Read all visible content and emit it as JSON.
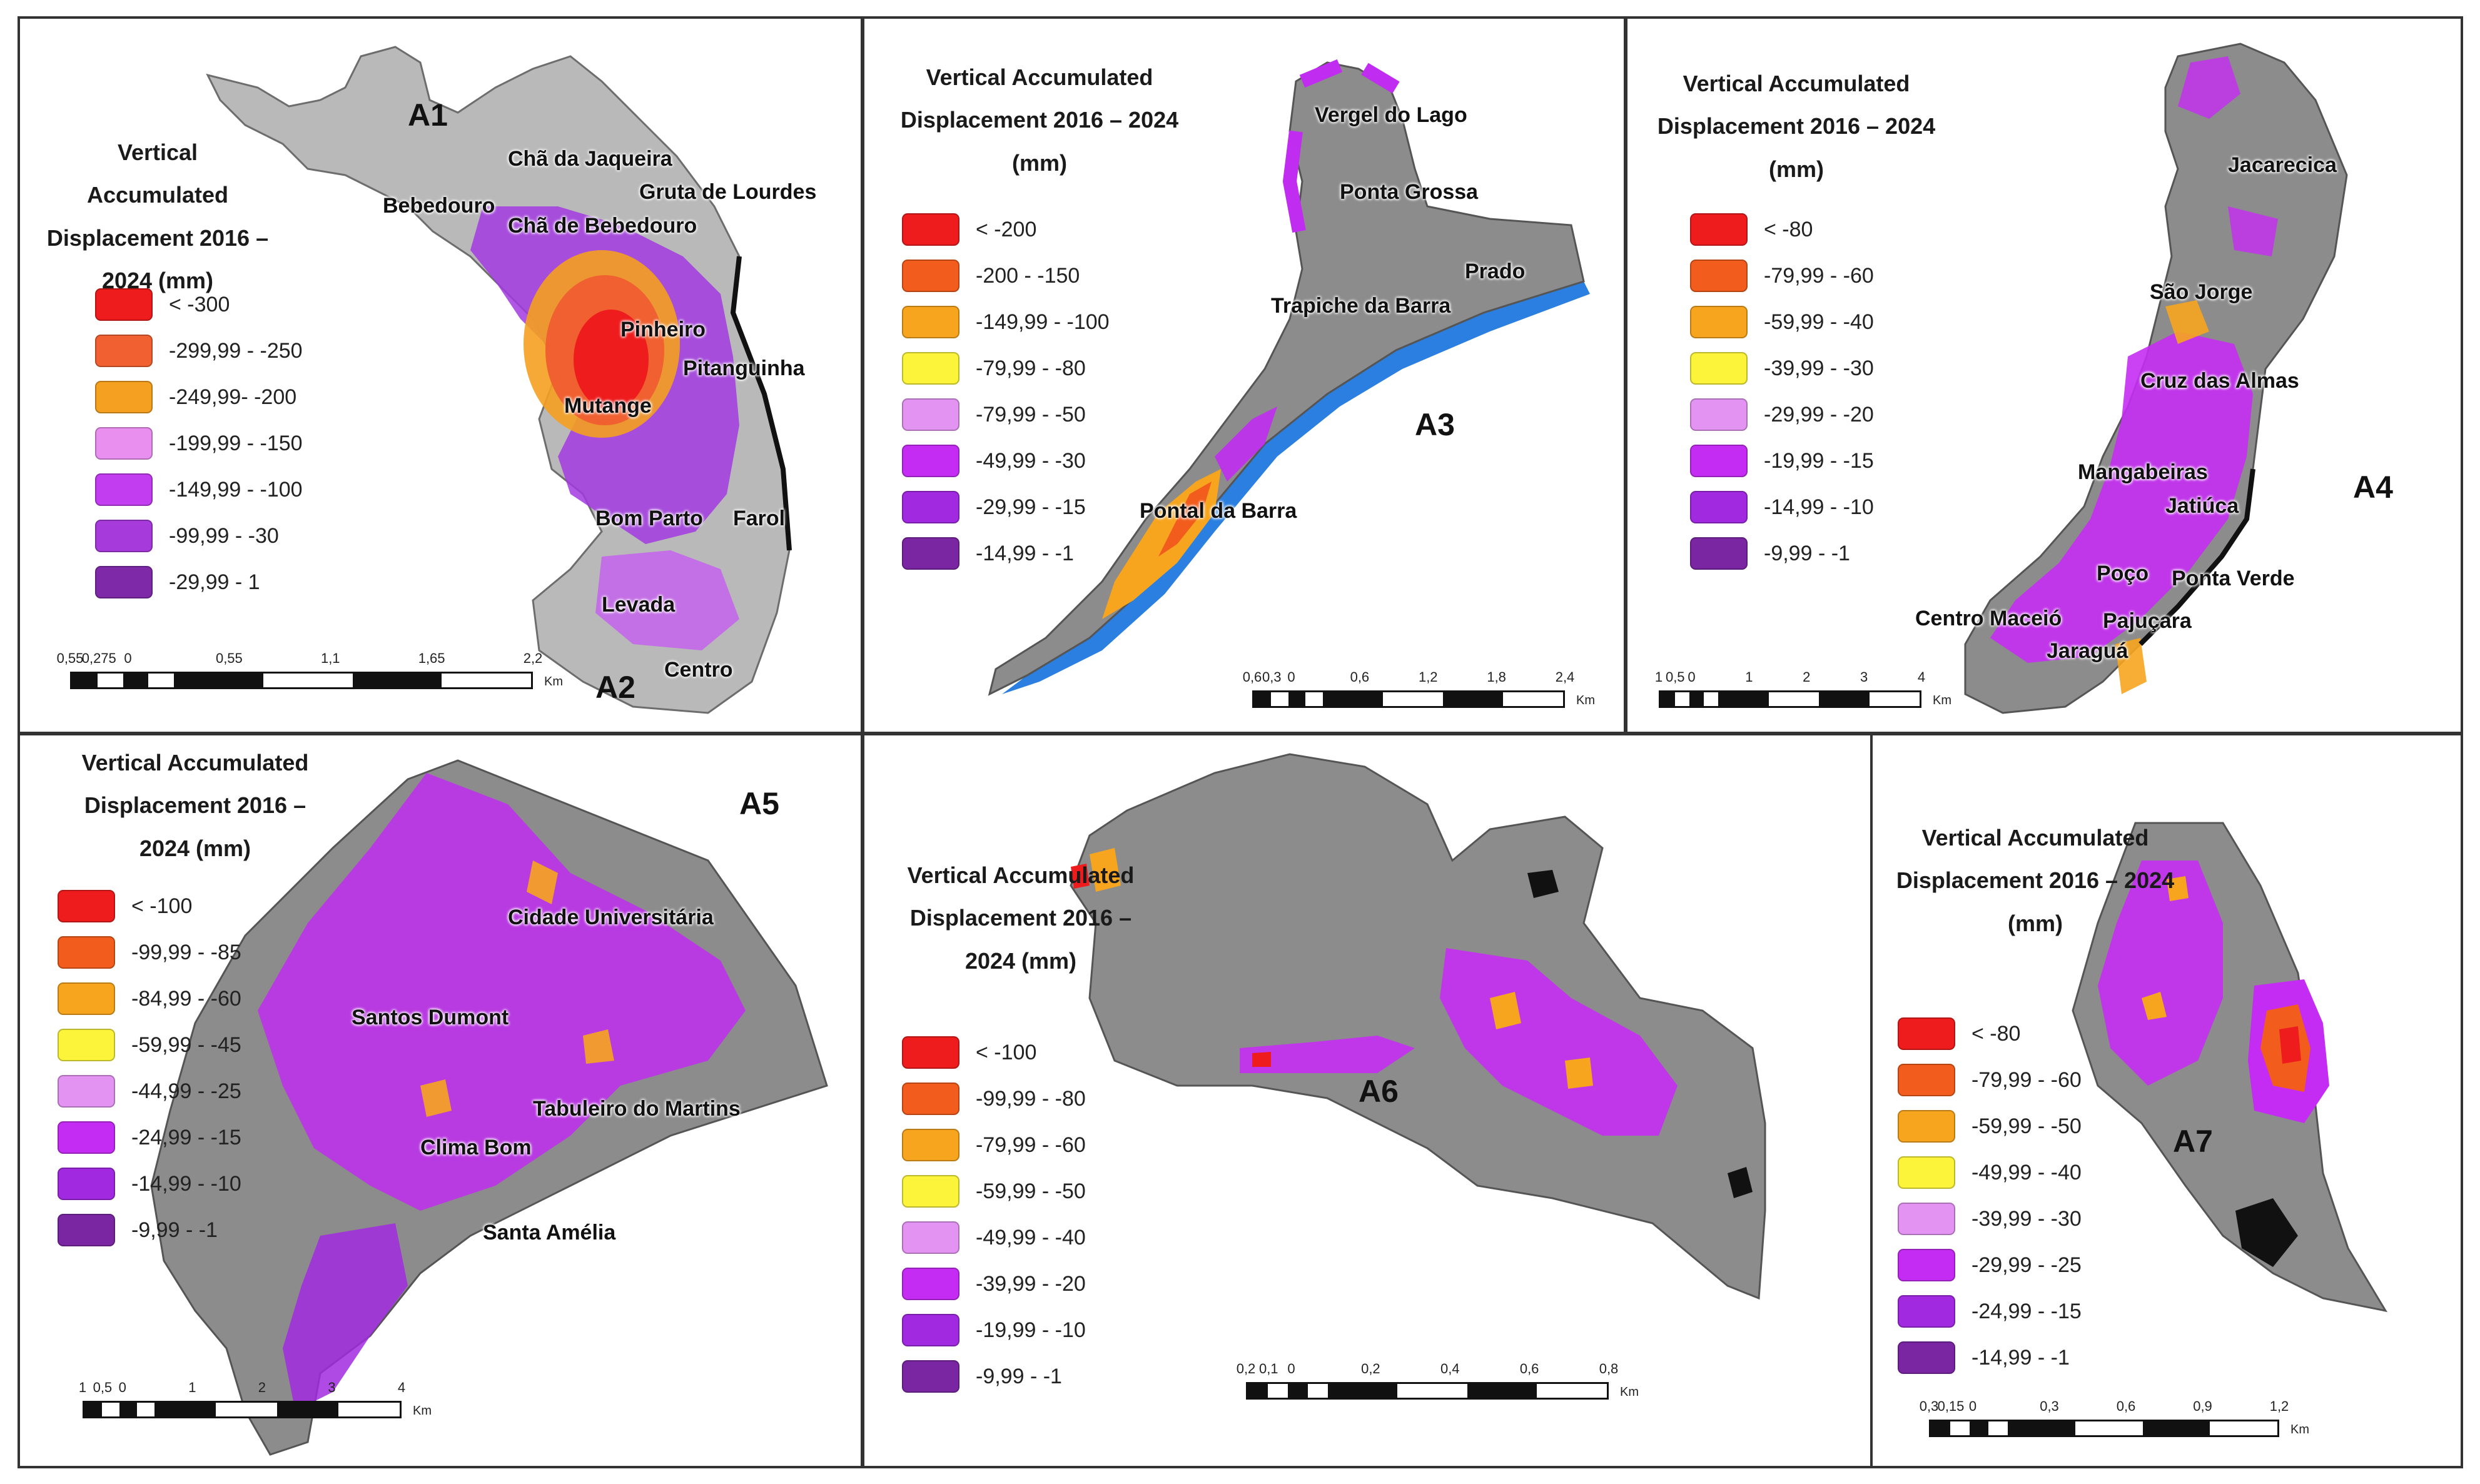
{
  "panels": [
    {
      "id": "p1",
      "labels": [
        "A1",
        "A2"
      ],
      "title": [
        "Vertical Accumulated",
        "Displacement 2016 –",
        "2024 (mm)"
      ],
      "legend": [
        "< -300",
        "-299,99 - -250",
        "-249,99- -200",
        "-199,99 - -150",
        "-149,99 - -100",
        "-99,99 - -30",
        "-29,99 - 1"
      ],
      "places": [
        "Chã da Jaqueira",
        "Gruta de Lourdes",
        "Bebedouro",
        "Chã de Bebedouro",
        "Pinheiro",
        "Pitanguinha",
        "Mutange",
        "Bom Parto",
        "Farol",
        "Levada",
        "Centro"
      ],
      "scale": {
        "ticks": [
          "0,55",
          "0,275",
          "0",
          "0,55",
          "1,1",
          "1,65",
          "2,2"
        ],
        "unit": "Km"
      }
    },
    {
      "id": "p3",
      "labels": [
        "A3"
      ],
      "title": [
        "Vertical Accumulated",
        "Displacement 2016 – 2024",
        "(mm)"
      ],
      "legend": [
        "< -200",
        "-200 - -150",
        "-149,99 - -100",
        "-79,99 - -80",
        "-79,99 - -50",
        "-49,99 - -30",
        "-29,99 - -15",
        "-14,99 - -1"
      ],
      "places": [
        "Vergel do Lago",
        "Ponta Grossa",
        "Prado",
        "Trapiche da Barra",
        "Pontal da Barra"
      ],
      "scale": {
        "ticks": [
          "0,6",
          "0,3",
          "0",
          "0,6",
          "1,2",
          "1,8",
          "2,4"
        ],
        "unit": "Km"
      }
    },
    {
      "id": "p4",
      "labels": [
        "A4"
      ],
      "title": [
        "Vertical Accumulated",
        "Displacement 2016 – 2024",
        "(mm)"
      ],
      "legend": [
        "< -80",
        "-79,99 - -60",
        "-59,99 - -40",
        "-39,99 - -30",
        "-29,99 - -20",
        "-19,99 - -15",
        "-14,99 - -10",
        "-9,99 - -1"
      ],
      "places": [
        "Jacarecica",
        "São Jorge",
        "Cruz das Almas",
        "Mangabeiras",
        "Jatiúca",
        "Poço",
        "Ponta Verde",
        "Centro Maceió",
        "Pajuçara",
        "Jaraguá"
      ],
      "scale": {
        "ticks": [
          "1",
          "0,5",
          "0",
          "1",
          "2",
          "3",
          "4"
        ],
        "unit": "Km"
      }
    },
    {
      "id": "p5",
      "labels": [
        "A5"
      ],
      "title": [
        "Vertical Accumulated",
        "Displacement 2016 –",
        "2024 (mm)"
      ],
      "legend": [
        "< -100",
        "-99,99 - -85",
        "-84,99 - -60",
        "-59,99 - -45",
        "-44,99 - -25",
        "-24,99 - -15",
        "-14,99 - -10",
        "-9,99 - -1"
      ],
      "places": [
        "Cidade Universitária",
        "Santos Dumont",
        "Tabuleiro do Martins",
        "Clima Bom",
        "Santa Amélia"
      ],
      "scale": {
        "ticks": [
          "1",
          "0,5",
          "0",
          "1",
          "2",
          "3",
          "4"
        ],
        "unit": "Km"
      }
    },
    {
      "id": "p6",
      "labels": [
        "A6"
      ],
      "title": [
        "Vertical Accumulated",
        "Displacement 2016 –",
        "2024 (mm)"
      ],
      "legend": [
        "< -100",
        "-99,99 - -80",
        "-79,99 - -60",
        "-59,99 - -50",
        "-49,99 - -40",
        "-39,99 - -20",
        "-19,99 - -10",
        "-9,99 - -1"
      ],
      "places": [],
      "scale": {
        "ticks": [
          "0,2",
          "0,1",
          "0",
          "0,2",
          "0,4",
          "0,6",
          "0,8"
        ],
        "unit": "Km"
      }
    },
    {
      "id": "p7",
      "labels": [
        "A7"
      ],
      "title": [
        "Vertical Accumulated",
        "Displacement 2016 – 2024",
        "(mm)"
      ],
      "legend": [
        "< -80",
        "-79,99 - -60",
        "-59,99 - -50",
        "-49,99 - -40",
        "-39,99 - -30",
        "-29,99 - -25",
        "-24,99 - -15",
        "-14,99 - -1"
      ],
      "places": [],
      "scale": {
        "ticks": [
          "0,3",
          "0,15",
          "0",
          "0,3",
          "0,6",
          "0,9",
          "1,2"
        ],
        "unit": "Km"
      }
    }
  ],
  "colors": {
    "p1": [
      "#ee1c1c",
      "#f06030",
      "#f5a020",
      "#e98ff0",
      "#c23cf0",
      "#a63adb",
      "#7e2aa8"
    ],
    "p3": [
      "#ee1c1c",
      "#f25c1c",
      "#f7a51e",
      "#fbf43a",
      "#e394f2",
      "#c52cf3",
      "#a12ae0",
      "#7a26a3"
    ],
    "p4": [
      "#ee1c1c",
      "#f25c1c",
      "#f7a51e",
      "#fbf43a",
      "#e394f2",
      "#c52cf3",
      "#a12ae0",
      "#7a26a3"
    ],
    "p5": [
      "#ee1c1c",
      "#f25c1c",
      "#f7a51e",
      "#fbf43a",
      "#e394f2",
      "#c52cf3",
      "#a12ae0",
      "#7a26a3"
    ],
    "p6": [
      "#ee1c1c",
      "#f25c1c",
      "#f7a51e",
      "#fbf43a",
      "#e394f2",
      "#c52cf3",
      "#a12ae0",
      "#7a26a3"
    ],
    "p7": [
      "#ee1c1c",
      "#f25c1c",
      "#f7a51e",
      "#fbf43a",
      "#e394f2",
      "#c52cf3",
      "#a12ae0",
      "#7a26a3"
    ],
    "water": "#2a7fe0",
    "map_gray": "#8c8c8c"
  }
}
